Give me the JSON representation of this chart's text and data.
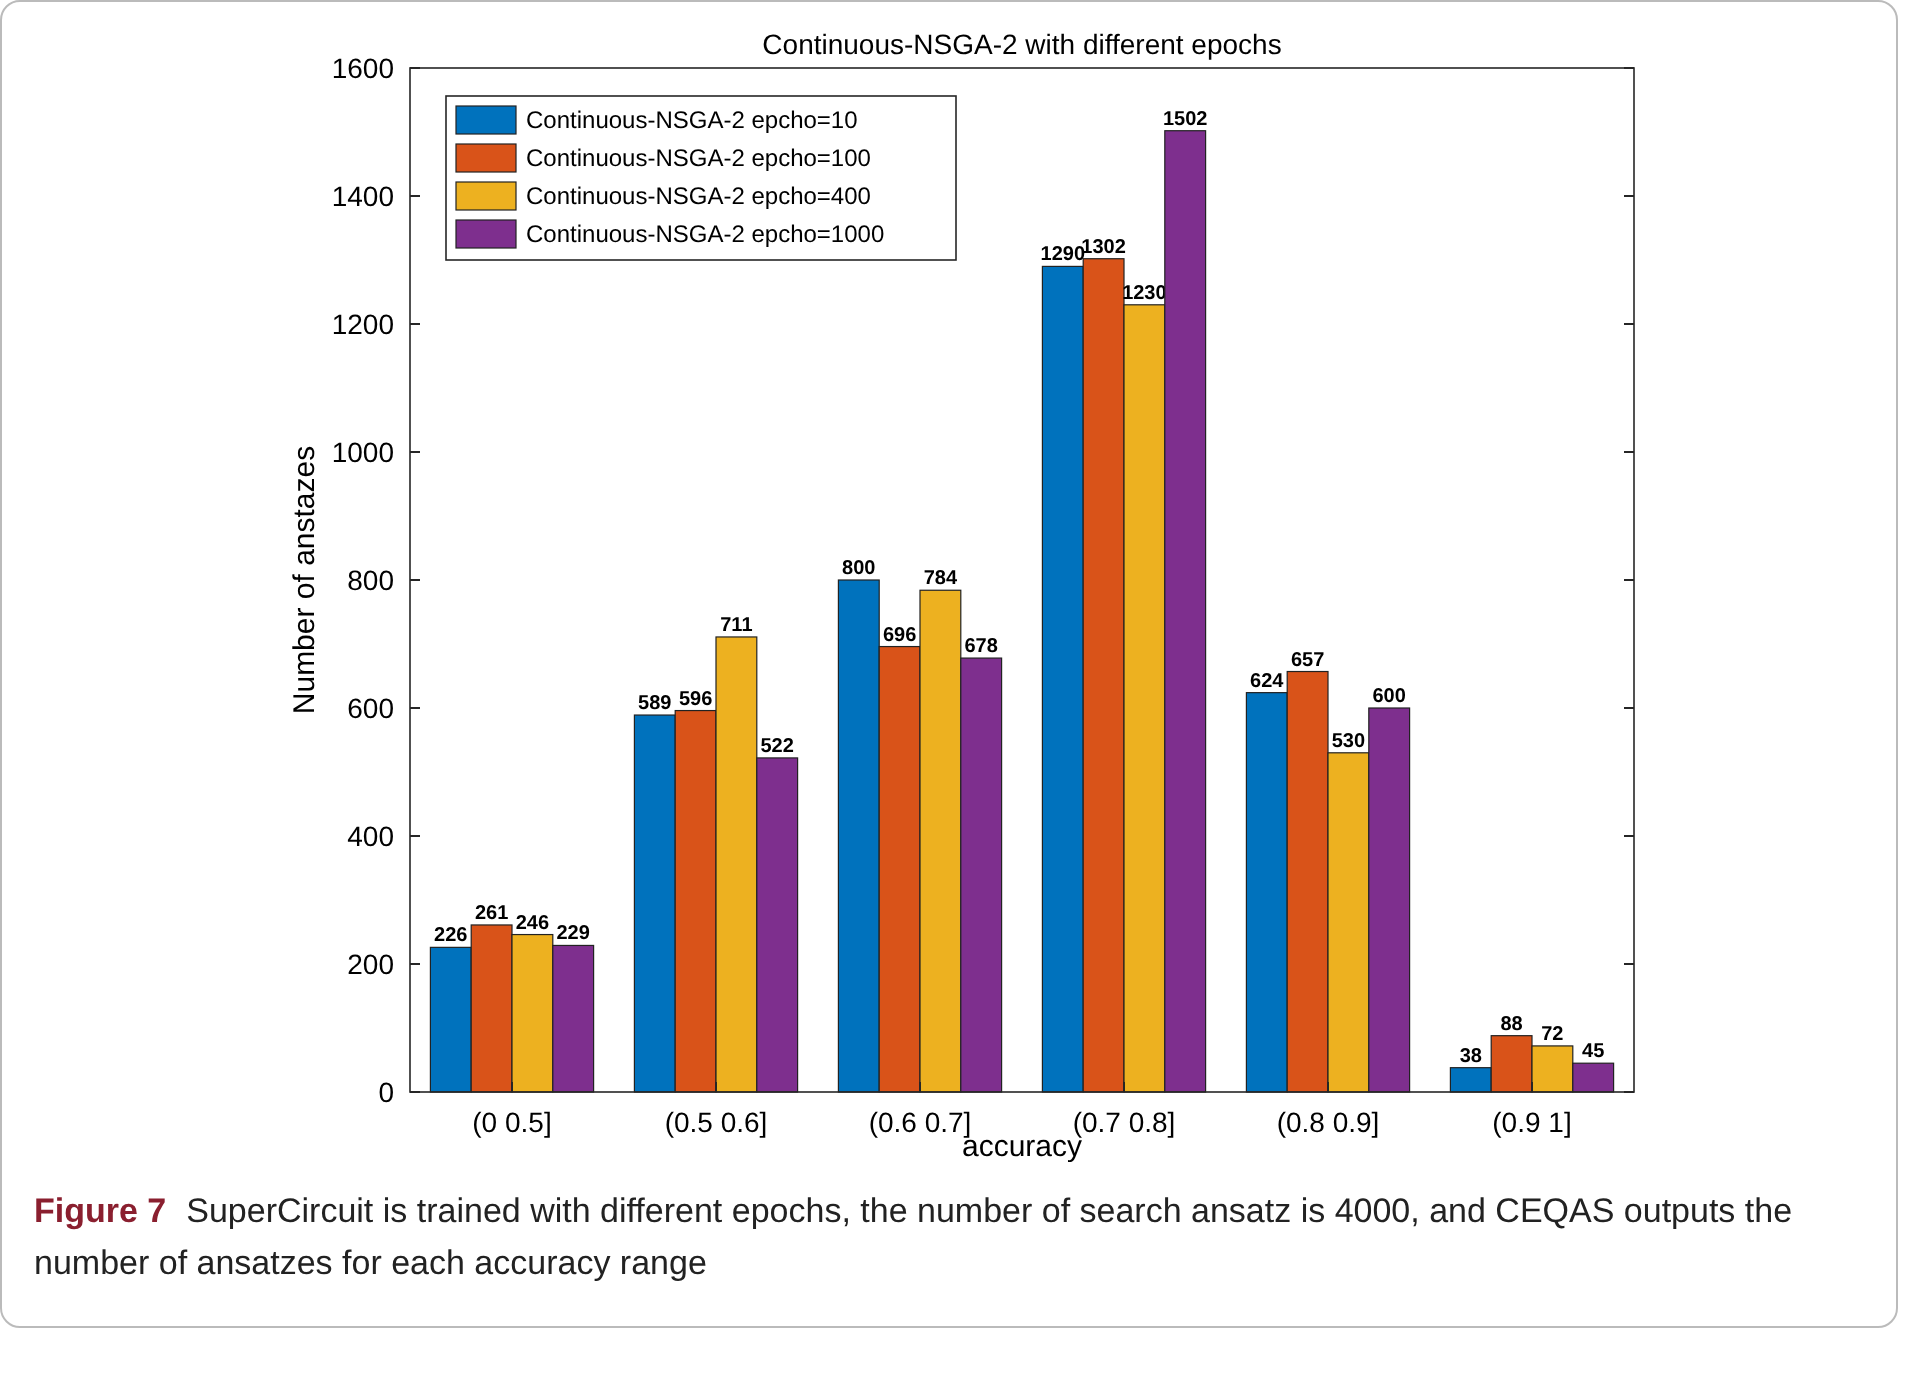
{
  "chart_data": {
    "type": "bar",
    "title": "Continuous-NSGA-2 with different epochs",
    "xlabel": "accuracy",
    "ylabel": "Number of anstazes",
    "categories": [
      "(0 0.5]",
      "(0.5 0.6]",
      "(0.6 0.7]",
      "(0.7 0.8]",
      "(0.8 0.9]",
      "(0.9 1]"
    ],
    "series": [
      {
        "name": "Continuous-NSGA-2 epcho=10",
        "color": "#0072bd",
        "values": [
          226,
          589,
          800,
          1290,
          624,
          38
        ]
      },
      {
        "name": "Continuous-NSGA-2 epcho=100",
        "color": "#d95319",
        "values": [
          261,
          596,
          696,
          1302,
          657,
          88
        ]
      },
      {
        "name": "Continuous-NSGA-2 epcho=400",
        "color": "#edb120",
        "values": [
          246,
          711,
          784,
          1230,
          530,
          72
        ]
      },
      {
        "name": "Continuous-NSGA-2 epcho=1000",
        "color": "#7e2f8e",
        "values": [
          229,
          522,
          678,
          1502,
          600,
          45
        ]
      }
    ],
    "ylim": [
      0,
      1600
    ],
    "yticks": [
      0,
      200,
      400,
      600,
      800,
      1000,
      1200,
      1400,
      1600
    ],
    "grid": false,
    "legend": "top left",
    "data_labels": true,
    "annotations": [
      "Figure 7",
      "SuperCircuit is trained with different epochs, the number of search ansatz is 4000, and CEQAS outputs the number of ansatzes for each accuracy range"
    ]
  }
}
